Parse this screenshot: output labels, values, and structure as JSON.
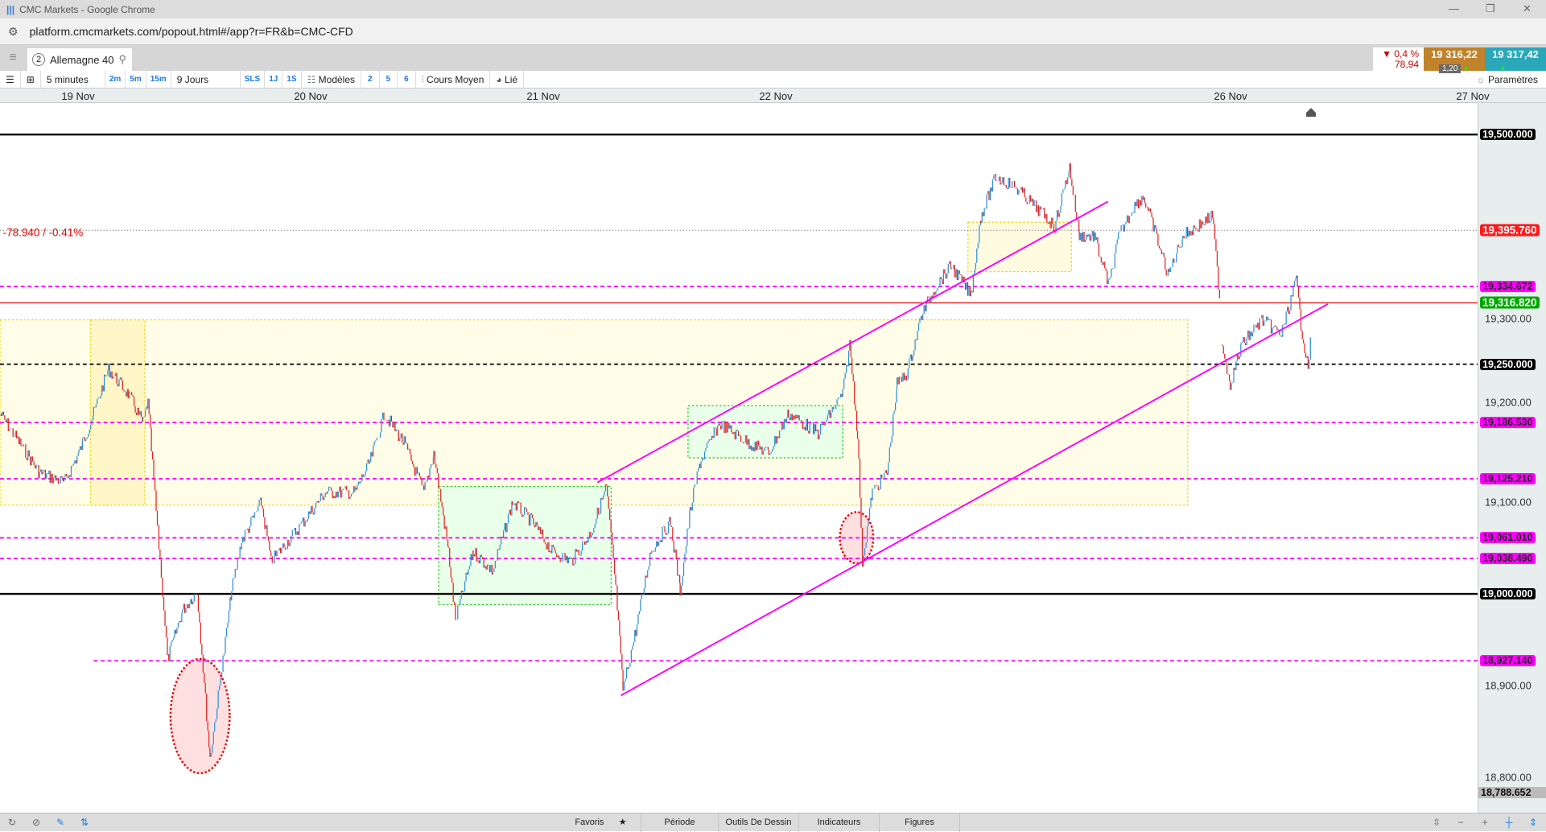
{
  "window": {
    "title": "CMC Markets - Google Chrome",
    "url": "platform.cmcmarkets.com/popout.html#/app?r=FR&b=CMC-CFD"
  },
  "instrument": {
    "number": "2",
    "name": "Allemagne 40"
  },
  "quote": {
    "change_pct": "0,4 %",
    "change_abs": "78,94",
    "direction": "down",
    "bid": "19 316,22",
    "ask": "19 317,42",
    "spread": "1,20"
  },
  "toolbar": {
    "interval": "5 minutes",
    "quick_intervals": [
      "2m",
      "5m",
      "15m"
    ],
    "range": "9 Jours",
    "ranges": [
      "SLS",
      "1J",
      "1S"
    ],
    "models": "Modèles",
    "model_presets": [
      "2",
      "5",
      "6"
    ],
    "price_type": "Cours Moyen",
    "linked": "Lié",
    "settings": "Paramètres"
  },
  "date_axis": [
    "19 Nov",
    "20 Nov",
    "21 Nov",
    "22 Nov",
    "26 Nov",
    "27 Nov"
  ],
  "price_axis": {
    "ticks": [
      "19,300.00",
      "19,200.00",
      "19,100.00",
      "18,900.00",
      "18,800.00"
    ],
    "levels": [
      {
        "label": "19,500.000",
        "price": 19500,
        "style": "solid",
        "color": "#000000"
      },
      {
        "label": "19,395.760",
        "price": 19395.76,
        "style": "dotted",
        "color": "#ff0000"
      },
      {
        "label": "19,334.672",
        "price": 19334.672,
        "style": "dashed",
        "color": "#ff00ff"
      },
      {
        "label": "19,316.820",
        "price": 19316.82,
        "style": "solid-thin",
        "color": "#00aa00"
      },
      {
        "label": "19,250.000",
        "price": 19250,
        "style": "dashed",
        "color": "#000000"
      },
      {
        "label": "19,186.530",
        "price": 19186.53,
        "style": "dashed",
        "color": "#ff00ff"
      },
      {
        "label": "19,125.210",
        "price": 19125.21,
        "style": "dashed",
        "color": "#ff00ff"
      },
      {
        "label": "19,061.010",
        "price": 19061.01,
        "style": "dashed",
        "color": "#ff00ff"
      },
      {
        "label": "19,038.490",
        "price": 19038.49,
        "style": "dashed",
        "color": "#ff00ff"
      },
      {
        "label": "19,000.000",
        "price": 19000,
        "style": "solid",
        "color": "#000000"
      },
      {
        "label": "18,927.140",
        "price": 18927.14,
        "style": "dashed",
        "color": "#ff00ff"
      }
    ],
    "low_label": "18,788.652"
  },
  "chart": {
    "change_annotation": "-78.940 / -0.41%",
    "up_color": "#2a8fd8",
    "down_color": "#e02020"
  },
  "bottom": {
    "tabs": [
      "Favoris",
      "Période",
      "Outils De Dessin",
      "Indicateurs",
      "Figures"
    ]
  }
}
